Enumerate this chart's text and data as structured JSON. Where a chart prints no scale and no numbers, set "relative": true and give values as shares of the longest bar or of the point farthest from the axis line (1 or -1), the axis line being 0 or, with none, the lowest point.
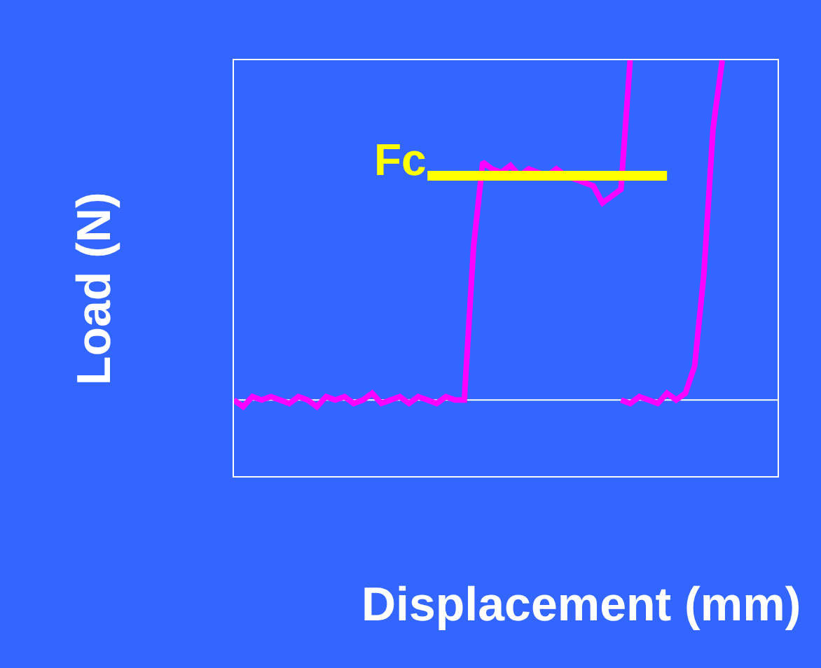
{
  "chart_data": {
    "type": "line",
    "relative": true,
    "xlabel": "Displacement (mm)",
    "ylabel": "Load (N)",
    "categories": [
      null,
      null,
      null,
      null,
      null,
      null,
      null,
      null,
      null,
      null,
      null,
      null,
      null,
      null,
      null,
      null,
      null,
      null,
      null,
      null,
      null,
      null,
      null,
      null,
      null,
      null,
      null,
      null,
      null,
      null,
      null,
      null,
      null,
      null,
      null,
      null,
      null,
      null,
      null,
      null,
      null,
      null,
      null,
      null,
      null,
      null,
      null,
      null,
      null,
      null,
      null,
      null,
      null,
      null,
      null,
      null,
      null,
      null,
      null,
      null
    ],
    "series": [
      {
        "color": "#ff00ff",
        "values": [
          0.0,
          -0.02,
          0.01,
          0.0,
          0.01,
          0.0,
          -0.01,
          0.01,
          0.0,
          -0.02,
          0.01,
          0.0,
          0.01,
          -0.01,
          0.0,
          0.02,
          -0.01,
          0.0,
          0.01,
          -0.01,
          0.01,
          0.0,
          -0.01,
          0.01,
          0.0,
          0.0,
          0.45,
          0.7,
          0.68,
          0.67,
          0.69,
          0.66,
          0.68,
          0.67,
          0.66,
          0.68,
          0.66,
          0.65,
          0.64,
          0.63,
          0.58,
          0.6,
          0.62,
          1.0,
          null,
          null,
          null,
          null,
          null,
          null,
          null,
          null,
          null,
          null,
          null,
          null,
          null,
          null,
          null,
          null
        ]
      },
      {
        "color": "#ff00ff",
        "values": [
          null,
          null,
          null,
          null,
          null,
          null,
          null,
          null,
          null,
          null,
          null,
          null,
          null,
          null,
          null,
          null,
          null,
          null,
          null,
          null,
          null,
          null,
          null,
          null,
          null,
          null,
          null,
          null,
          null,
          null,
          null,
          null,
          null,
          null,
          null,
          null,
          null,
          null,
          null,
          null,
          null,
          null,
          0.0,
          -0.01,
          0.01,
          0.0,
          -0.01,
          0.02,
          0.0,
          0.02,
          0.1,
          0.37,
          0.8,
          1.0,
          null,
          null,
          null,
          null,
          null,
          null
        ]
      },
      {
        "name": "Fc",
        "color": "#ffff00",
        "values": [
          null,
          null,
          null,
          null,
          null,
          null,
          null,
          null,
          null,
          null,
          null,
          null,
          null,
          null,
          null,
          null,
          null,
          null,
          null,
          null,
          null,
          0.66,
          0.66,
          0.66,
          0.66,
          0.66,
          0.66,
          0.66,
          0.66,
          0.66,
          0.66,
          0.66,
          0.66,
          0.66,
          0.66,
          0.66,
          0.66,
          0.66,
          0.66,
          0.66,
          0.66,
          0.66,
          0.66,
          0.66,
          0.66,
          0.66,
          0.66,
          0.66,
          null,
          null,
          null,
          null,
          null,
          null,
          null,
          null,
          null,
          null,
          null,
          null
        ]
      }
    ],
    "legend": false,
    "grid": false
  }
}
